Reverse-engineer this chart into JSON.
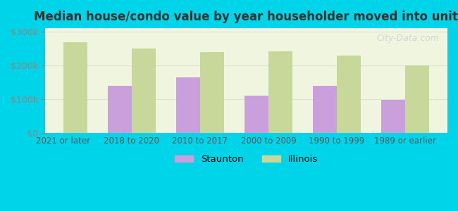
{
  "title": "Median house/condo value by year householder moved into unit",
  "categories": [
    "2021 or later",
    "2018 to 2020",
    "2010 to 2017",
    "2000 to 2009",
    "1990 to 1999",
    "1989 or earlier"
  ],
  "staunton_values": [
    null,
    140000,
    165000,
    110000,
    140000,
    98000
  ],
  "illinois_values": [
    268000,
    250000,
    240000,
    242000,
    228000,
    200000
  ],
  "staunton_color": "#c9a0dc",
  "illinois_color": "#c8d89a",
  "background_outer": "#00d4e8",
  "background_inner": "#f0f5e0",
  "grid_color": "#e0e0d0",
  "ylabel_color": "#a0a0a0",
  "title_color": "#333333",
  "yticks": [
    0,
    100000,
    200000,
    300000
  ],
  "ylim": [
    0,
    310000
  ],
  "bar_width": 0.35,
  "watermark": "City-Data.com",
  "legend_labels": [
    "Staunton",
    "Illinois"
  ]
}
